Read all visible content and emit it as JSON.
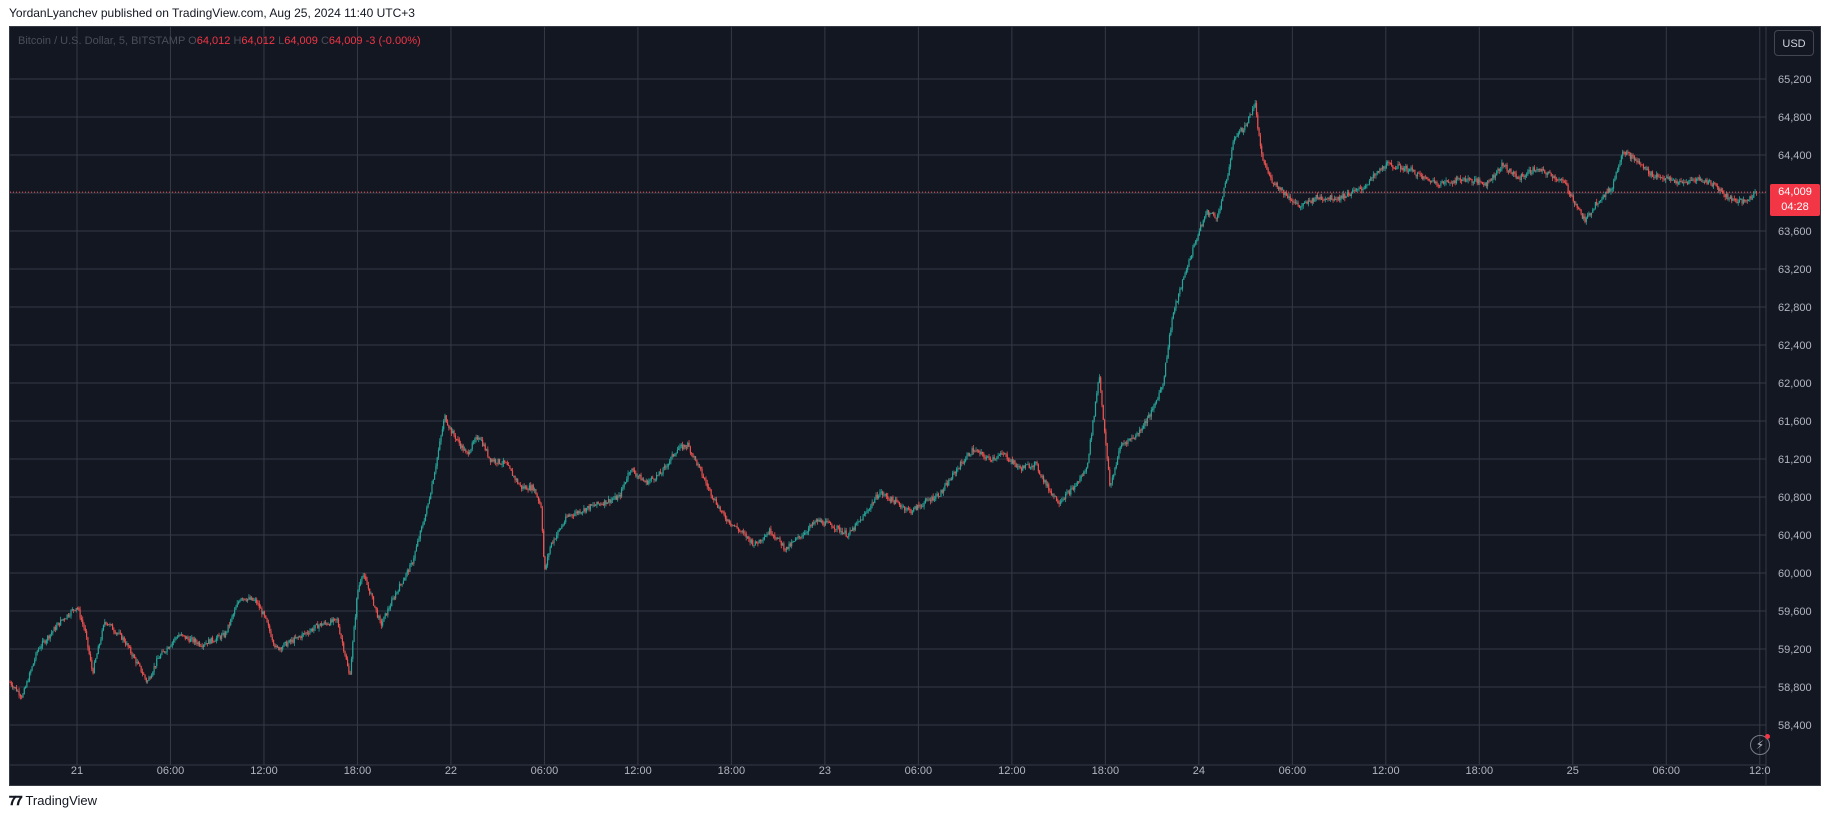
{
  "header": {
    "published": "YordanLyanchev published on TradingView.com, Aug 25, 2024 11:40 UTC+3"
  },
  "legend": {
    "symbol": "Bitcoin / U.S. Dollar, 5, BITSTAMP",
    "open_label": "O",
    "open": "64,012",
    "high_label": "H",
    "high": "64,012",
    "low_label": "L",
    "low": "64,009",
    "close_label": "C",
    "close": "64,009",
    "change": "-3 (-0.00%)"
  },
  "currency_button": "USD",
  "last_price": {
    "price": "64,009",
    "countdown": "04:28"
  },
  "footer": {
    "brand": "TradingView"
  },
  "colors": {
    "up": "#26a69a",
    "down": "#ef5350",
    "background": "#131722",
    "grid": "#363a45"
  },
  "icons": {
    "alert": "lightning-icon",
    "logo": "tradingview-logo-icon"
  },
  "chart_data": {
    "type": "candlestick",
    "title": "Bitcoin / U.S. Dollar, 5, BITSTAMP",
    "interval": "5",
    "currency": "USD",
    "y_ticks": [
      58400,
      58800,
      59200,
      59600,
      60000,
      60400,
      60800,
      61200,
      61600,
      62000,
      62400,
      62800,
      63200,
      63600,
      64000,
      64400,
      64800,
      65200
    ],
    "y_tick_labels": [
      "58,400",
      "58,800",
      "59,200",
      "59,600",
      "60,000",
      "60,400",
      "60,800",
      "61,200",
      "61,600",
      "62,000",
      "62,400",
      "62,800",
      "63,200",
      "63,600",
      "64,000",
      "64,400",
      "64,800",
      "65,200"
    ],
    "ylim": [
      58200,
      65500
    ],
    "x_ticks": [
      "21",
      "06:00",
      "12:00",
      "18:00",
      "22",
      "06:00",
      "12:00",
      "18:00",
      "23",
      "06:00",
      "12:00",
      "18:00",
      "24",
      "06:00",
      "12:00",
      "18:00",
      "25",
      "06:00",
      "12:0"
    ],
    "x_tick_hours": [
      0,
      6,
      12,
      18,
      24,
      30,
      36,
      42,
      48,
      54,
      60,
      66,
      72,
      78,
      84,
      90,
      96,
      102,
      108
    ],
    "x_range_hours": [
      -4.3,
      108.4
    ],
    "last_price": 64009,
    "price_path": [
      [
        -4.3,
        58850
      ],
      [
        -3.5,
        58700
      ],
      [
        -2.5,
        59200
      ],
      [
        -1.0,
        59500
      ],
      [
        0,
        59650
      ],
      [
        0.5,
        59400
      ],
      [
        1.0,
        58950
      ],
      [
        1.8,
        59500
      ],
      [
        3.0,
        59300
      ],
      [
        4.2,
        58950
      ],
      [
        4.5,
        58850
      ],
      [
        5.2,
        59100
      ],
      [
        6.5,
        59350
      ],
      [
        8,
        59250
      ],
      [
        9.5,
        59350
      ],
      [
        10.5,
        59750
      ],
      [
        11.5,
        59700
      ],
      [
        12.0,
        59550
      ],
      [
        12.8,
        59200
      ],
      [
        14,
        59300
      ],
      [
        15.5,
        59450
      ],
      [
        16.7,
        59500
      ],
      [
        17.2,
        59150
      ],
      [
        17.5,
        58900
      ],
      [
        18.0,
        59800
      ],
      [
        18.3,
        60000
      ],
      [
        18.8,
        59800
      ],
      [
        19.5,
        59450
      ],
      [
        20.5,
        59800
      ],
      [
        21.5,
        60100
      ],
      [
        22.5,
        60700
      ],
      [
        23.1,
        61200
      ],
      [
        23.6,
        61650
      ],
      [
        24.0,
        61500
      ],
      [
        25.0,
        61250
      ],
      [
        25.8,
        61450
      ],
      [
        26.5,
        61200
      ],
      [
        27.5,
        61150
      ],
      [
        28.5,
        60900
      ],
      [
        29.3,
        60900
      ],
      [
        29.8,
        60700
      ],
      [
        30.0,
        60000
      ],
      [
        30.4,
        60300
      ],
      [
        31.5,
        60600
      ],
      [
        33,
        60700
      ],
      [
        34.8,
        60800
      ],
      [
        35.5,
        61100
      ],
      [
        36.5,
        60950
      ],
      [
        37.5,
        61050
      ],
      [
        38.5,
        61300
      ],
      [
        39.2,
        61350
      ],
      [
        39.8,
        61150
      ],
      [
        40.5,
        60900
      ],
      [
        41.5,
        60600
      ],
      [
        42.5,
        60450
      ],
      [
        43.5,
        60300
      ],
      [
        44.5,
        60450
      ],
      [
        45.5,
        60250
      ],
      [
        46.5,
        60400
      ],
      [
        47.5,
        60550
      ],
      [
        48.5,
        60500
      ],
      [
        49.5,
        60400
      ],
      [
        50.5,
        60600
      ],
      [
        51.5,
        60850
      ],
      [
        52.5,
        60750
      ],
      [
        53.5,
        60650
      ],
      [
        54.5,
        60750
      ],
      [
        55.5,
        60850
      ],
      [
        56.5,
        61100
      ],
      [
        57.5,
        61300
      ],
      [
        58.5,
        61200
      ],
      [
        59.5,
        61250
      ],
      [
        60.5,
        61100
      ],
      [
        61.5,
        61150
      ],
      [
        62.3,
        60900
      ],
      [
        63,
        60750
      ],
      [
        64,
        60900
      ],
      [
        64.8,
        61100
      ],
      [
        65.3,
        61700
      ],
      [
        65.6,
        62100
      ],
      [
        66.0,
        61400
      ],
      [
        66.3,
        60900
      ],
      [
        67.0,
        61350
      ],
      [
        68,
        61450
      ],
      [
        69,
        61700
      ],
      [
        69.7,
        62000
      ],
      [
        70.3,
        62700
      ],
      [
        71.2,
        63200
      ],
      [
        71.8,
        63500
      ],
      [
        72.5,
        63800
      ],
      [
        73.2,
        63750
      ],
      [
        73.8,
        64150
      ],
      [
        74.3,
        64600
      ],
      [
        75.0,
        64700
      ],
      [
        75.6,
        64950
      ],
      [
        76.0,
        64400
      ],
      [
        76.6,
        64150
      ],
      [
        77.5,
        64000
      ],
      [
        78.5,
        63850
      ],
      [
        79.5,
        63950
      ],
      [
        81,
        63950
      ],
      [
        82.5,
        64050
      ],
      [
        84,
        64300
      ],
      [
        85.5,
        64250
      ],
      [
        86.5,
        64150
      ],
      [
        87.5,
        64100
      ],
      [
        89,
        64150
      ],
      [
        90.5,
        64100
      ],
      [
        91.5,
        64300
      ],
      [
        92.5,
        64150
      ],
      [
        93.5,
        64250
      ],
      [
        94.5,
        64200
      ],
      [
        95.5,
        64100
      ],
      [
        96.3,
        63850
      ],
      [
        96.8,
        63700
      ],
      [
        97.5,
        63900
      ],
      [
        98.5,
        64050
      ],
      [
        99.2,
        64450
      ],
      [
        100,
        64350
      ],
      [
        101,
        64200
      ],
      [
        102,
        64150
      ],
      [
        103,
        64100
      ],
      [
        104,
        64150
      ],
      [
        105,
        64100
      ],
      [
        106,
        63950
      ],
      [
        107,
        63900
      ],
      [
        107.8,
        64009
      ]
    ]
  }
}
